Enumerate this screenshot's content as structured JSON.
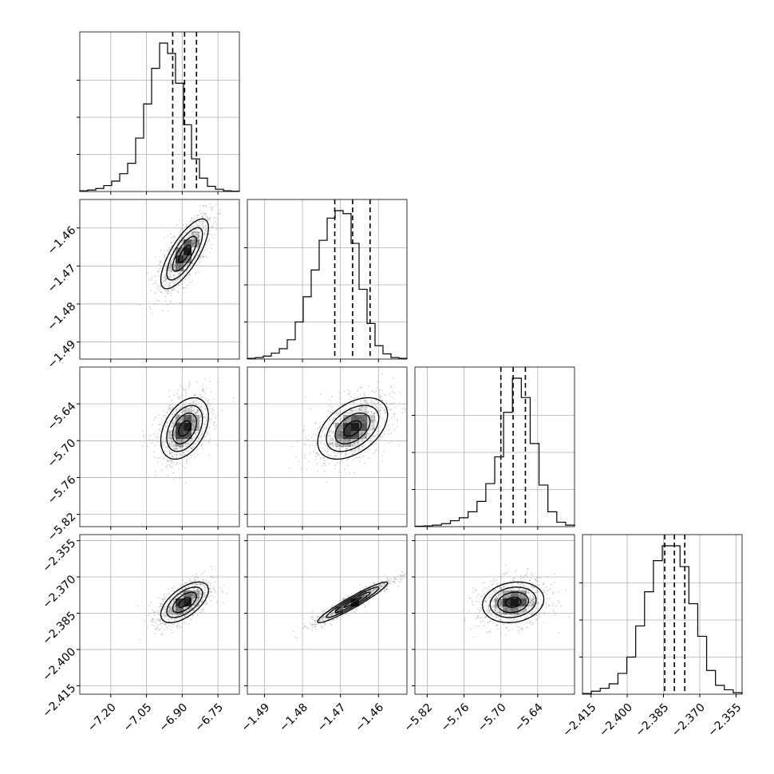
{
  "chart_data": {
    "type": "corner",
    "grid": true,
    "parameters": [
      {
        "median": -6.89,
        "q16": -6.94,
        "q84": -6.84,
        "sigma": 0.05,
        "range": [
          -7.33,
          -6.66
        ],
        "ticks": [
          -7.2,
          -7.05,
          -6.9,
          -6.75
        ],
        "tick_labels": [
          "−7.20",
          "−7.05",
          "−6.90",
          "−6.75"
        ],
        "hist": [
          0.005,
          0.01,
          0.02,
          0.04,
          0.07,
          0.12,
          0.19,
          0.36,
          0.59,
          0.83,
          1.0,
          0.93,
          0.73,
          0.45,
          0.22,
          0.09,
          0.035,
          0.015,
          0.005,
          0.002
        ]
      },
      {
        "median": -1.4668,
        "q16": -1.4715,
        "q84": -1.4622,
        "sigma": 0.0046,
        "range": [
          -1.4945,
          -1.4525
        ],
        "ticks": [
          -1.49,
          -1.48,
          -1.47,
          -1.46
        ],
        "tick_labels": [
          "−1.49",
          "−1.48",
          "−1.47",
          "−1.46"
        ],
        "hist": [
          0.005,
          0.01,
          0.02,
          0.04,
          0.07,
          0.13,
          0.25,
          0.42,
          0.6,
          0.8,
          0.95,
          1.0,
          0.98,
          0.78,
          0.47,
          0.24,
          0.09,
          0.035,
          0.01,
          0.005
        ]
      },
      {
        "median": -5.68,
        "q16": -5.7,
        "q84": -5.66,
        "sigma": 0.025,
        "range": [
          -5.84,
          -5.58
        ],
        "ticks": [
          -5.82,
          -5.76,
          -5.7,
          -5.64
        ],
        "tick_labels": [
          "−5.82",
          "−5.76",
          "−5.70",
          "−5.64"
        ],
        "hist": [
          0.003,
          0.005,
          0.01,
          0.02,
          0.04,
          0.06,
          0.1,
          0.17,
          0.29,
          0.47,
          0.77,
          1.0,
          0.87,
          0.56,
          0.28,
          0.1,
          0.03,
          0.01
        ]
      },
      {
        "median": -2.3805,
        "q16": -2.3845,
        "q84": -2.3762,
        "sigma": 0.0042,
        "range": [
          -2.4185,
          -2.3525
        ],
        "ticks": [
          -2.415,
          -2.4,
          -2.385,
          -2.37,
          -2.355
        ],
        "tick_labels": [
          "−2.415",
          "−2.400",
          "−2.385",
          "−2.370",
          "−2.355"
        ],
        "hist": [
          0.005,
          0.02,
          0.04,
          0.07,
          0.14,
          0.25,
          0.46,
          0.69,
          0.9,
          1.0,
          1.0,
          0.86,
          0.61,
          0.39,
          0.16,
          0.06,
          0.03,
          0.01
        ]
      }
    ],
    "correlations": [
      [
        1.0,
        0.75,
        0.4,
        0.6
      ],
      [
        0.75,
        1.0,
        0.45,
        0.95
      ],
      [
        0.4,
        0.45,
        1.0,
        0.15
      ],
      [
        0.6,
        0.95,
        0.15,
        1.0
      ]
    ],
    "contour_levels_sigma": [
      0.5,
      1.0,
      1.5,
      2.0
    ],
    "colors": {
      "line": "#000000",
      "points": "#9a9a9a",
      "grid": "#b0b0b0",
      "density": "#000000"
    }
  }
}
